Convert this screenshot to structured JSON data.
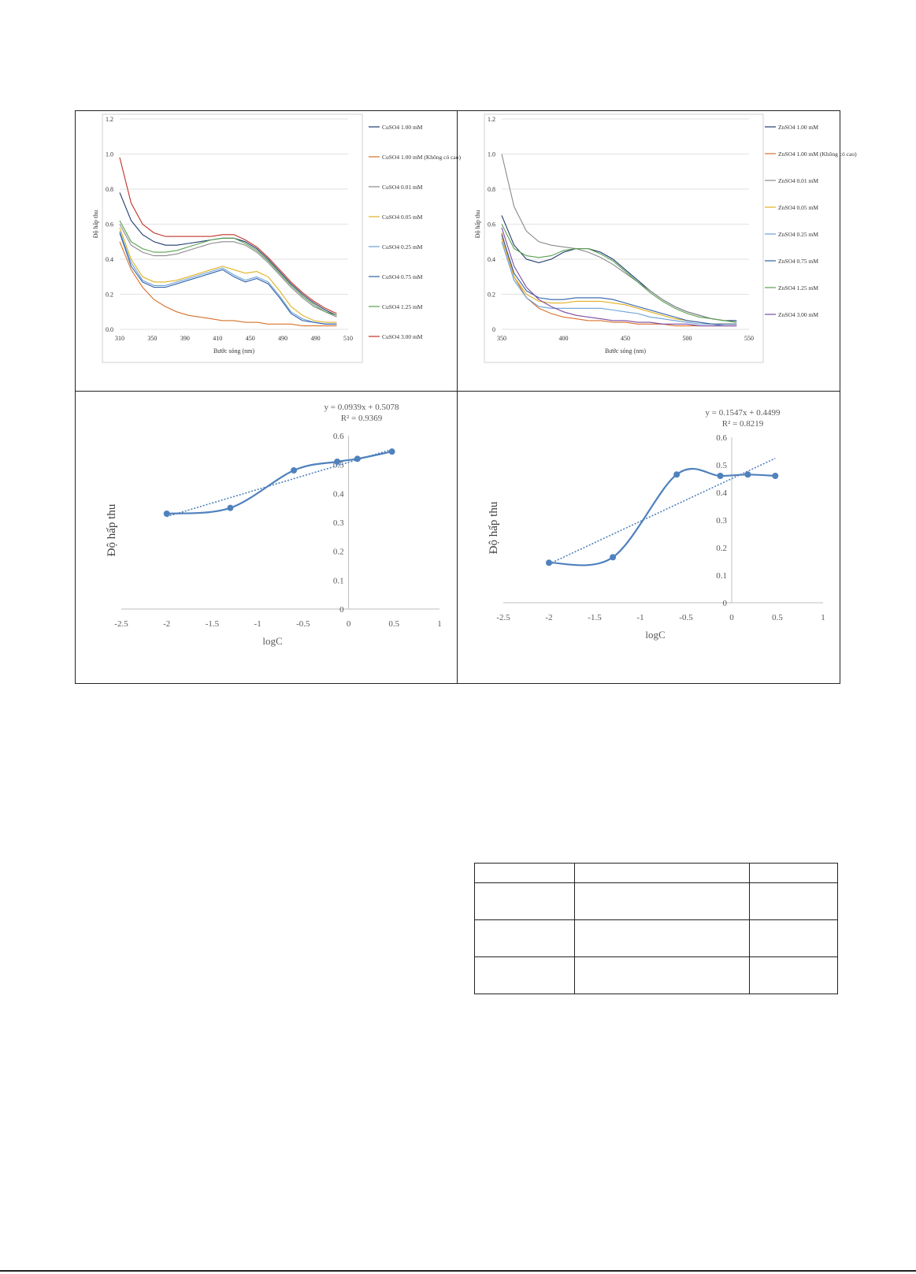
{
  "chart_data": [
    {
      "id": "uv_cuso4",
      "type": "line",
      "ylabel": "Độ hấp thu",
      "xlabel": "Bước sóng (nm)",
      "xlim": [
        310,
        510
      ],
      "ylim": [
        0,
        1.2
      ],
      "x_ticks": [
        "310",
        "350",
        "390",
        "410",
        "450",
        "490",
        "490",
        "510"
      ],
      "y_ticks": [
        "0.0",
        "0.2",
        "0.4",
        "0.6",
        "0.8",
        "1.0",
        "1.2"
      ],
      "series": [
        {
          "name": "CuSO4 1.00 mM",
          "color": "#1f3a6e",
          "x": [
            310,
            320,
            330,
            340,
            350,
            360,
            370,
            380,
            390,
            400,
            410,
            420,
            430,
            440,
            450,
            460,
            470,
            480,
            490,
            500
          ],
          "y": [
            0.78,
            0.62,
            0.54,
            0.5,
            0.48,
            0.48,
            0.49,
            0.5,
            0.51,
            0.52,
            0.52,
            0.5,
            0.46,
            0.4,
            0.33,
            0.26,
            0.2,
            0.15,
            0.11,
            0.08
          ]
        },
        {
          "name": "CuSO4 1.00 mM (Không có cao)",
          "color": "#d8702a",
          "x": [
            310,
            320,
            330,
            340,
            350,
            360,
            370,
            380,
            390,
            400,
            410,
            420,
            430,
            440,
            450,
            460,
            470,
            480,
            490,
            500
          ],
          "y": [
            0.5,
            0.34,
            0.24,
            0.17,
            0.13,
            0.1,
            0.08,
            0.07,
            0.06,
            0.05,
            0.05,
            0.04,
            0.04,
            0.03,
            0.03,
            0.03,
            0.02,
            0.02,
            0.02,
            0.02
          ]
        },
        {
          "name": "CuSO4 0.01 mM",
          "color": "#8a8a8a",
          "x": [
            310,
            320,
            330,
            340,
            350,
            360,
            370,
            380,
            390,
            400,
            410,
            420,
            430,
            440,
            450,
            460,
            470,
            480,
            490,
            500
          ],
          "y": [
            0.6,
            0.48,
            0.44,
            0.42,
            0.42,
            0.43,
            0.45,
            0.47,
            0.49,
            0.5,
            0.5,
            0.48,
            0.44,
            0.38,
            0.31,
            0.24,
            0.18,
            0.13,
            0.1,
            0.07
          ]
        },
        {
          "name": "CuSO4 0.05 mM",
          "color": "#e0b020",
          "x": [
            310,
            320,
            330,
            340,
            350,
            360,
            370,
            380,
            390,
            400,
            410,
            420,
            430,
            440,
            450,
            460,
            470,
            480,
            490,
            500
          ],
          "y": [
            0.58,
            0.4,
            0.3,
            0.27,
            0.27,
            0.28,
            0.3,
            0.32,
            0.34,
            0.36,
            0.34,
            0.32,
            0.33,
            0.3,
            0.22,
            0.13,
            0.08,
            0.05,
            0.04,
            0.04
          ]
        },
        {
          "name": "CuSO4 0.25 mM",
          "color": "#6aa0d8",
          "x": [
            310,
            320,
            330,
            340,
            350,
            360,
            370,
            380,
            390,
            400,
            410,
            420,
            430,
            440,
            450,
            460,
            470,
            480,
            490,
            500
          ],
          "y": [
            0.56,
            0.38,
            0.28,
            0.25,
            0.25,
            0.27,
            0.29,
            0.31,
            0.33,
            0.35,
            0.31,
            0.28,
            0.3,
            0.27,
            0.19,
            0.1,
            0.06,
            0.04,
            0.03,
            0.03
          ]
        },
        {
          "name": "CuSO4 0.75 mM",
          "color": "#2e5fa8",
          "x": [
            310,
            320,
            330,
            340,
            350,
            360,
            370,
            380,
            390,
            400,
            410,
            420,
            430,
            440,
            450,
            460,
            470,
            480,
            490,
            500
          ],
          "y": [
            0.55,
            0.36,
            0.27,
            0.24,
            0.24,
            0.26,
            0.28,
            0.3,
            0.32,
            0.34,
            0.3,
            0.27,
            0.29,
            0.26,
            0.18,
            0.09,
            0.05,
            0.04,
            0.03,
            0.03
          ]
        },
        {
          "name": "CuSO4 1.25 mM",
          "color": "#5aa050",
          "x": [
            310,
            320,
            330,
            340,
            350,
            360,
            370,
            380,
            390,
            400,
            410,
            420,
            430,
            440,
            450,
            460,
            470,
            480,
            490,
            500
          ],
          "y": [
            0.62,
            0.5,
            0.46,
            0.44,
            0.44,
            0.45,
            0.47,
            0.49,
            0.51,
            0.52,
            0.52,
            0.49,
            0.45,
            0.39,
            0.32,
            0.25,
            0.19,
            0.14,
            0.1,
            0.08
          ]
        },
        {
          "name": "CuSO4 3.00 mM",
          "color": "#c03028",
          "x": [
            310,
            320,
            330,
            340,
            350,
            360,
            370,
            380,
            390,
            400,
            410,
            420,
            430,
            440,
            450,
            460,
            470,
            480,
            490,
            500
          ],
          "y": [
            0.98,
            0.72,
            0.6,
            0.55,
            0.53,
            0.53,
            0.53,
            0.53,
            0.53,
            0.54,
            0.54,
            0.51,
            0.47,
            0.41,
            0.34,
            0.27,
            0.21,
            0.16,
            0.12,
            0.09
          ]
        }
      ]
    },
    {
      "id": "uv_zn",
      "type": "line",
      "ylabel": "Độ hấp thu",
      "xlabel": "Bước sóng (nm)",
      "xlim": [
        350,
        550
      ],
      "ylim": [
        0,
        1.2
      ],
      "x_ticks": [
        "350",
        "400",
        "450",
        "500",
        "550"
      ],
      "y_ticks": [
        "0",
        "0.2",
        "0.4",
        "0.6",
        "0.8",
        "1.0",
        "1.2"
      ],
      "series": [
        {
          "name": "ZnSO4 1.00 mM",
          "color": "#1f3a6e",
          "x": [
            350,
            360,
            370,
            380,
            390,
            400,
            410,
            420,
            430,
            440,
            450,
            460,
            470,
            480,
            490,
            500,
            510,
            520,
            530,
            540
          ],
          "y": [
            0.65,
            0.48,
            0.4,
            0.38,
            0.4,
            0.44,
            0.46,
            0.46,
            0.44,
            0.4,
            0.34,
            0.28,
            0.22,
            0.17,
            0.13,
            0.1,
            0.08,
            0.06,
            0.05,
            0.05
          ]
        },
        {
          "name": "ZnSO4 1.00 mM (Không có cao)",
          "color": "#d8702a",
          "x": [
            350,
            360,
            370,
            380,
            390,
            400,
            410,
            420,
            430,
            440,
            450,
            460,
            470,
            480,
            490,
            500,
            510,
            520,
            530,
            540
          ],
          "y": [
            0.55,
            0.3,
            0.18,
            0.12,
            0.09,
            0.07,
            0.06,
            0.05,
            0.05,
            0.04,
            0.04,
            0.03,
            0.03,
            0.03,
            0.02,
            0.02,
            0.02,
            0.02,
            0.02,
            0.02
          ]
        },
        {
          "name": "ZnSO4 0.01 mM",
          "color": "#8a8a8a",
          "x": [
            350,
            360,
            370,
            380,
            390,
            400,
            410,
            420,
            430,
            440,
            450,
            460,
            470,
            480,
            490,
            500,
            510,
            520,
            530,
            540
          ],
          "y": [
            1.0,
            0.7,
            0.56,
            0.5,
            0.48,
            0.47,
            0.46,
            0.44,
            0.41,
            0.37,
            0.32,
            0.27,
            0.22,
            0.17,
            0.13,
            0.1,
            0.08,
            0.06,
            0.05,
            0.04
          ]
        },
        {
          "name": "ZnSO4 0.05 mM",
          "color": "#e0b020",
          "x": [
            350,
            360,
            370,
            380,
            390,
            400,
            410,
            420,
            430,
            440,
            450,
            460,
            470,
            480,
            490,
            500,
            510,
            520,
            530,
            540
          ],
          "y": [
            0.52,
            0.3,
            0.2,
            0.16,
            0.15,
            0.15,
            0.16,
            0.16,
            0.16,
            0.15,
            0.14,
            0.12,
            0.1,
            0.08,
            0.06,
            0.05,
            0.04,
            0.03,
            0.03,
            0.03
          ]
        },
        {
          "name": "ZnSO4 0.25 mM",
          "color": "#6aa0d8",
          "x": [
            350,
            360,
            370,
            380,
            390,
            400,
            410,
            420,
            430,
            440,
            450,
            460,
            470,
            480,
            490,
            500,
            510,
            520,
            530,
            540
          ],
          "y": [
            0.5,
            0.28,
            0.18,
            0.13,
            0.12,
            0.12,
            0.12,
            0.12,
            0.12,
            0.11,
            0.1,
            0.09,
            0.07,
            0.06,
            0.05,
            0.04,
            0.03,
            0.03,
            0.02,
            0.02
          ]
        },
        {
          "name": "ZnSO4 0.75 mM",
          "color": "#2e5fa8",
          "x": [
            350,
            360,
            370,
            380,
            390,
            400,
            410,
            420,
            430,
            440,
            450,
            460,
            470,
            480,
            490,
            500,
            510,
            520,
            530,
            540
          ],
          "y": [
            0.54,
            0.32,
            0.22,
            0.18,
            0.17,
            0.17,
            0.18,
            0.18,
            0.18,
            0.17,
            0.15,
            0.13,
            0.11,
            0.09,
            0.07,
            0.05,
            0.04,
            0.03,
            0.03,
            0.03
          ]
        },
        {
          "name": "ZnSO4 1.25 mM",
          "color": "#5aa050",
          "x": [
            350,
            360,
            370,
            380,
            390,
            400,
            410,
            420,
            430,
            440,
            450,
            460,
            470,
            480,
            490,
            500,
            510,
            520,
            530,
            540
          ],
          "y": [
            0.6,
            0.46,
            0.42,
            0.41,
            0.42,
            0.45,
            0.46,
            0.46,
            0.43,
            0.39,
            0.33,
            0.27,
            0.21,
            0.16,
            0.12,
            0.09,
            0.07,
            0.06,
            0.05,
            0.04
          ]
        },
        {
          "name": "ZnSO4 3.00 mM",
          "color": "#7a4aa0",
          "x": [
            350,
            360,
            370,
            380,
            390,
            400,
            410,
            420,
            430,
            440,
            450,
            460,
            470,
            480,
            490,
            500,
            510,
            520,
            530,
            540
          ],
          "y": [
            0.58,
            0.36,
            0.24,
            0.17,
            0.13,
            0.1,
            0.08,
            0.07,
            0.06,
            0.05,
            0.05,
            0.04,
            0.04,
            0.03,
            0.03,
            0.03,
            0.02,
            0.02,
            0.02,
            0.02
          ]
        }
      ]
    },
    {
      "id": "calib_cu",
      "type": "scatter",
      "ylabel": "Độ hấp thu",
      "xlabel": "logC",
      "xlim": [
        -2.5,
        1
      ],
      "ylim": [
        0,
        0.6
      ],
      "x_ticks": [
        "-2.5",
        "-2",
        "-1.5",
        "-1",
        "-0.5",
        "0",
        "0.5",
        "1"
      ],
      "y_ticks": [
        "0",
        "0.1",
        "0.2",
        "0.3",
        "0.4",
        "0.5",
        "0.6"
      ],
      "equation": "y = 0.0939x + 0.5078",
      "r2": "R² = 0.9369",
      "trend": {
        "slope": 0.0939,
        "intercept": 0.5078
      },
      "series": [
        {
          "x": [
            -2,
            -1.301,
            -0.602,
            -0.125,
            0.097,
            0.477
          ],
          "y": [
            0.33,
            0.35,
            0.48,
            0.51,
            0.52,
            0.545
          ]
        }
      ]
    },
    {
      "id": "calib_zn",
      "type": "scatter",
      "ylabel": "Độ hấp thu",
      "xlabel": "logC",
      "xlim": [
        -2.5,
        1
      ],
      "ylim": [
        0,
        0.6
      ],
      "x_ticks": [
        "-2.5",
        "-2",
        "-1.5",
        "-1",
        "-0.5",
        "0",
        "0.5",
        "1"
      ],
      "y_ticks": [
        "0",
        "0.1",
        "0.2",
        "0.3",
        "0.4",
        "0.5",
        "0.6"
      ],
      "equation": "y = 0.1547x + 0.4499",
      "r2": "R² = 0.8219",
      "trend": {
        "slope": 0.1547,
        "intercept": 0.4499
      },
      "series": [
        {
          "x": [
            -2,
            -1.301,
            -0.602,
            -0.125,
            0.176,
            0.477
          ],
          "y": [
            0.145,
            0.165,
            0.465,
            0.46,
            0.465,
            0.46
          ]
        }
      ]
    }
  ],
  "colors": {
    "calib_line": "#4f81bd",
    "grid": "#d9d9d9",
    "axis": "#bfbfbf"
  }
}
